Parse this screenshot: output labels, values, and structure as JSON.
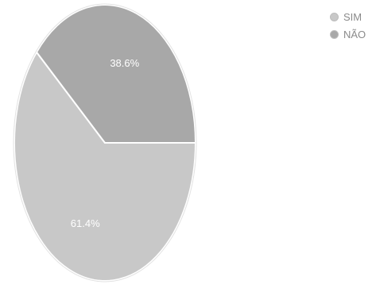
{
  "chart_data": {
    "type": "pie",
    "title": "",
    "categories": [
      "SIM",
      "NÃO"
    ],
    "values": [
      61.4,
      38.6
    ],
    "labels": [
      "61.4%",
      "38.6%"
    ],
    "colors": [
      "#c8c8c8",
      "#a8a8a8"
    ],
    "legend_position": "top-right",
    "grid": false
  }
}
